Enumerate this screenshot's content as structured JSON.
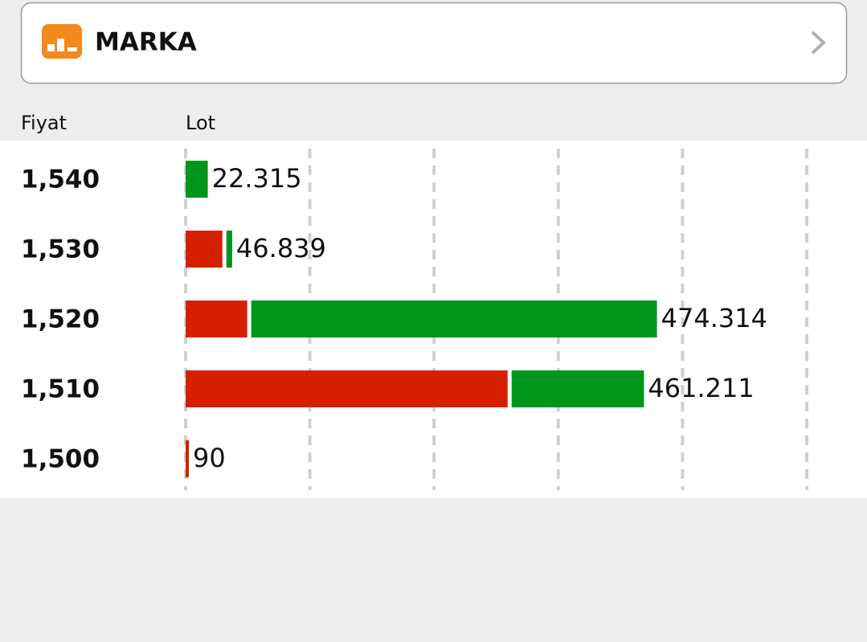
{
  "header": {
    "title": "MARKA"
  },
  "columns": [
    "Fiyat",
    "Lot"
  ],
  "chart_data": {
    "type": "bar",
    "orientation": "horizontal",
    "stacked": true,
    "categories": [
      "1,540",
      "1,530",
      "1,520",
      "1,510",
      "1,500"
    ],
    "series": [
      {
        "color": "#d42000",
        "values": [
          0,
          37000,
          62000,
          324000,
          90
        ]
      },
      {
        "color": "#00961c",
        "values": [
          22315,
          9839,
          412314,
          137211,
          0
        ]
      }
    ],
    "totals": [
      22315,
      46839,
      474314,
      461211,
      90
    ],
    "value_labels": [
      "22.315",
      "46.839",
      "474.314",
      "461.211",
      "90"
    ],
    "xlim": [
      0,
      625000
    ],
    "xticks": [
      0,
      125000,
      250000,
      375000,
      500000,
      625000
    ],
    "grid": true
  }
}
